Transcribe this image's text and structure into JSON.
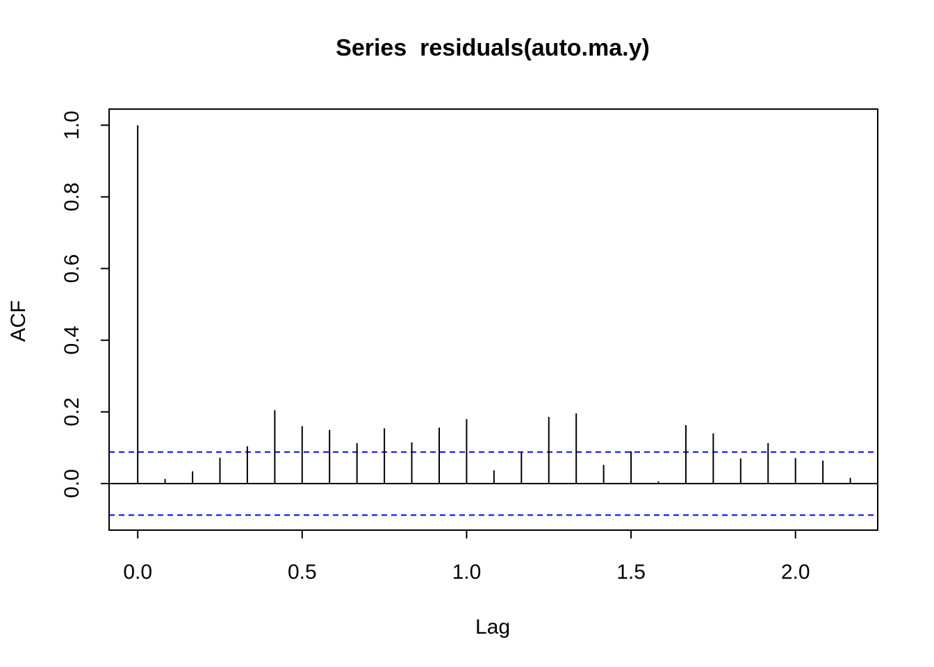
{
  "chart_data": {
    "type": "bar",
    "title": "Series  residuals(auto.ma.y)",
    "xlabel": "Lag",
    "ylabel": "ACF",
    "xlim": [
      -0.087,
      2.25
    ],
    "ylim": [
      -0.13,
      1.045
    ],
    "x_ticks": [
      "0.0",
      "0.5",
      "1.0",
      "1.5",
      "2.0"
    ],
    "x_tick_values": [
      0,
      0.5,
      1.0,
      1.5,
      2.0
    ],
    "y_ticks": [
      "0.0",
      "0.2",
      "0.4",
      "0.6",
      "0.8",
      "1.0"
    ],
    "y_tick_values": [
      0,
      0.2,
      0.4,
      0.6,
      0.8,
      1.0
    ],
    "grid": false,
    "lags": [
      0,
      0.0833,
      0.1667,
      0.25,
      0.3333,
      0.4167,
      0.5,
      0.5833,
      0.6667,
      0.75,
      0.8333,
      0.9167,
      1.0,
      1.0833,
      1.1667,
      1.25,
      1.3333,
      1.4167,
      1.5,
      1.5833,
      1.6667,
      1.75,
      1.8333,
      1.9167,
      2.0,
      2.0833,
      2.1667
    ],
    "acf": [
      1.0,
      0.013,
      0.034,
      0.072,
      0.104,
      0.205,
      0.16,
      0.15,
      0.113,
      0.154,
      0.115,
      0.156,
      0.18,
      0.037,
      0.087,
      0.186,
      0.196,
      0.052,
      0.09,
      0.006,
      0.163,
      0.14,
      0.07,
      0.113,
      0.071,
      0.064,
      0.016
    ],
    "confidence_bound": 0.088,
    "colors": {
      "bars": "#000000",
      "ci_lines": "#0000ff",
      "zero_line": "#000000"
    }
  }
}
